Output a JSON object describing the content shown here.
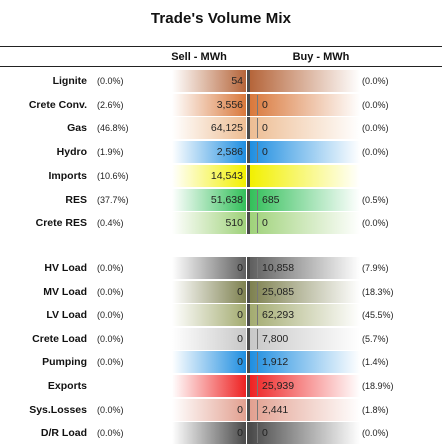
{
  "chart_data": {
    "type": "table",
    "title": "Trade's Volume Mix",
    "sell_header": "Sell - MWh",
    "buy_header": "Buy - MWh",
    "rows": [
      {
        "label": "Lignite",
        "sell_pct": "(0.0%)",
        "sell": "54",
        "buy": "",
        "buy_pct": "(0.0%)",
        "color": "#b5653a"
      },
      {
        "label": "Crete Conv.",
        "sell_pct": "(2.6%)",
        "sell": "3,556",
        "buy": "0",
        "buy_pct": "(0.0%)",
        "color": "#d9783b"
      },
      {
        "label": "Gas",
        "sell_pct": "(46.8%)",
        "sell": "64,125",
        "buy": "0",
        "buy_pct": "(0.0%)",
        "color": "#edbd93"
      },
      {
        "label": "Hydro",
        "sell_pct": "(1.9%)",
        "sell": "2,586",
        "buy": "0",
        "buy_pct": "(0.0%)",
        "color": "#1f8ee0"
      },
      {
        "label": "Imports",
        "sell_pct": "(10.6%)",
        "sell": "14,543",
        "buy": "",
        "buy_pct": "",
        "color": "#f2f000"
      },
      {
        "label": "RES",
        "sell_pct": "(37.7%)",
        "sell": "51,638",
        "buy": "685",
        "buy_pct": "(0.5%)",
        "color": "#33bf5a"
      },
      {
        "label": "Crete RES",
        "sell_pct": "(0.4%)",
        "sell": "510",
        "buy": "0",
        "buy_pct": "(0.0%)",
        "color": "#9fd27a"
      },
      {
        "label": "HV Load",
        "sell_pct": "(0.0%)",
        "sell": "0",
        "buy": "10,858",
        "buy_pct": "(7.9%)",
        "color": "#5f5f5f"
      },
      {
        "label": "MV Load",
        "sell_pct": "(0.0%)",
        "sell": "0",
        "buy": "25,085",
        "buy_pct": "(18.3%)",
        "color": "#7e8150"
      },
      {
        "label": "LV Load",
        "sell_pct": "(0.0%)",
        "sell": "0",
        "buy": "62,293",
        "buy_pct": "(45.5%)",
        "color": "#a3ab70"
      },
      {
        "label": "Crete Load",
        "sell_pct": "(0.0%)",
        "sell": "0",
        "buy": "7,800",
        "buy_pct": "(5.7%)",
        "color": "#c8c8c8"
      },
      {
        "label": "Pumping",
        "sell_pct": "(0.0%)",
        "sell": "0",
        "buy": "1,912",
        "buy_pct": "(1.4%)",
        "color": "#1f8ee0"
      },
      {
        "label": "Exports",
        "sell_pct": "",
        "sell": "",
        "buy": "25,939",
        "buy_pct": "(18.9%)",
        "color": "#ee2222"
      },
      {
        "label": "Sys.Losses",
        "sell_pct": "(0.0%)",
        "sell": "0",
        "buy": "2,441",
        "buy_pct": "(1.8%)",
        "color": "#e2a090"
      },
      {
        "label": "D/R Load",
        "sell_pct": "(0.0%)",
        "sell": "0",
        "buy": "0",
        "buy_pct": "(0.0%)",
        "color": "#4a4a4a"
      }
    ]
  }
}
